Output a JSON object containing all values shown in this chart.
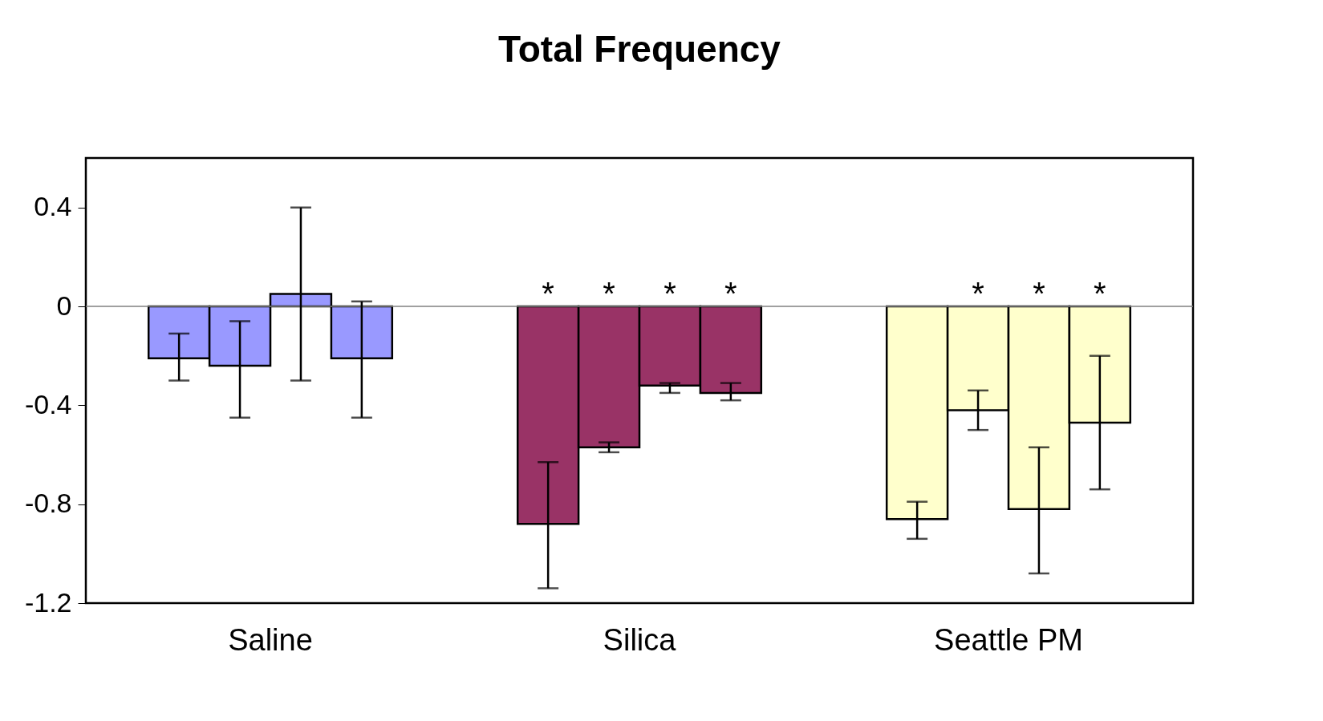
{
  "chart_data": {
    "type": "bar",
    "title": "Total Frequency",
    "categories": [
      "Saline",
      "Silica",
      "Seattle PM"
    ],
    "series": [
      {
        "colors": [
          "#9999ff",
          "#993366",
          "#ffffcc"
        ],
        "values": [
          -0.21,
          -0.88,
          -0.86
        ],
        "errors": [
          [
            -0.3,
            -0.11
          ],
          [
            -1.14,
            -0.63
          ],
          [
            -0.94,
            -0.79
          ]
        ],
        "value_labels": [
          null,
          "*",
          null
        ]
      },
      {
        "colors": [
          "#9999ff",
          "#993366",
          "#ffffcc"
        ],
        "values": [
          -0.24,
          -0.57,
          -0.42
        ],
        "errors": [
          [
            -0.45,
            -0.06
          ],
          [
            -0.59,
            -0.55
          ],
          [
            -0.5,
            -0.34
          ]
        ],
        "value_labels": [
          null,
          "*",
          "*"
        ]
      },
      {
        "colors": [
          "#9999ff",
          "#993366",
          "#ffffcc"
        ],
        "values": [
          0.05,
          -0.32,
          -0.82
        ],
        "errors": [
          [
            -0.3,
            0.4
          ],
          [
            -0.35,
            -0.31
          ],
          [
            -1.08,
            -0.57
          ]
        ],
        "value_labels": [
          null,
          "*",
          "*"
        ]
      },
      {
        "colors": [
          "#9999ff",
          "#993366",
          "#ffffcc"
        ],
        "values": [
          -0.21,
          -0.35,
          -0.47
        ],
        "errors": [
          [
            -0.45,
            0.02
          ],
          [
            -0.38,
            -0.31
          ],
          [
            -0.74,
            -0.2
          ]
        ],
        "value_labels": [
          null,
          "*",
          "*"
        ]
      }
    ],
    "ylim": [
      -1.2,
      0.6
    ],
    "yticks": [
      -1.2,
      -0.8,
      -0.4,
      0,
      0.4
    ],
    "ref_lines": [
      {
        "axis": "y",
        "value": 0,
        "color": "#808080"
      }
    ]
  }
}
